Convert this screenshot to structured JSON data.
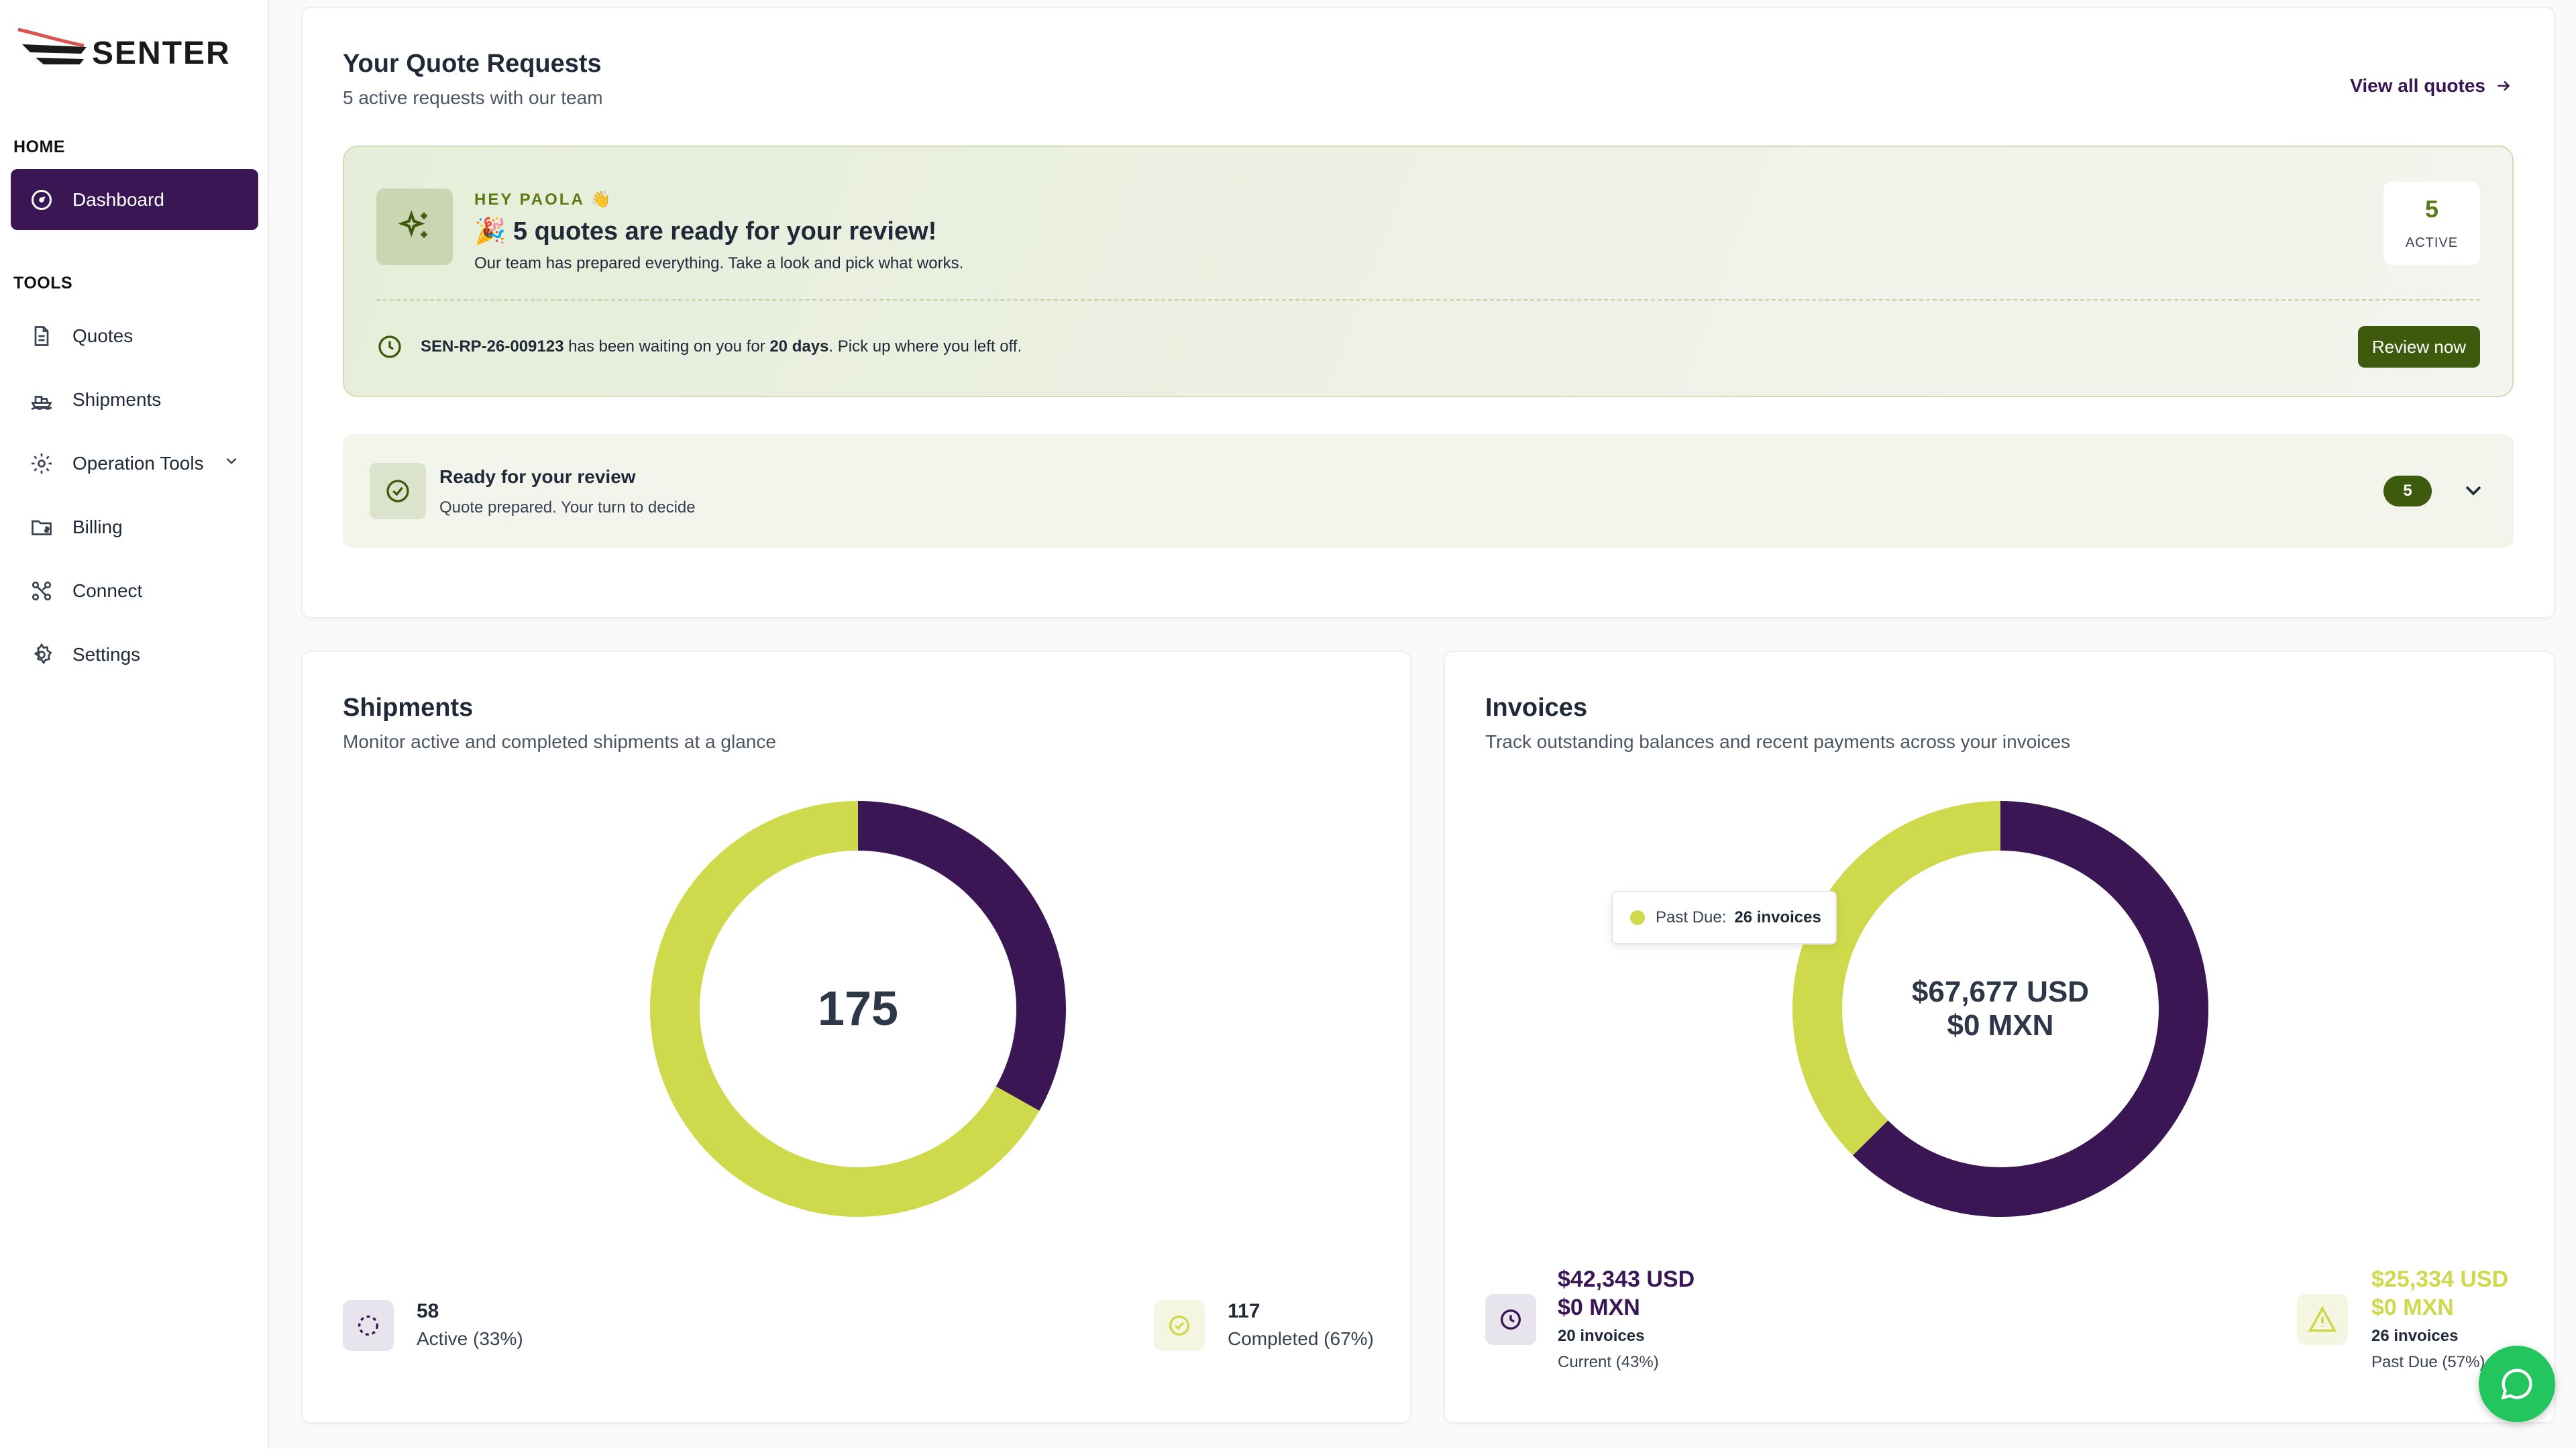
{
  "brand": {
    "name": "SENTER"
  },
  "sidebar": {
    "home_label": "HOME",
    "tools_label": "TOOLS",
    "items": [
      {
        "label": "Dashboard",
        "icon": "gauge-icon",
        "active": true
      },
      {
        "label": "Quotes",
        "icon": "document-icon"
      },
      {
        "label": "Shipments",
        "icon": "ship-icon"
      },
      {
        "label": "Operation Tools",
        "icon": "gear-cog-icon"
      },
      {
        "label": "Billing",
        "icon": "folder-dollar-icon"
      },
      {
        "label": "Connect",
        "icon": "connect-icon"
      },
      {
        "label": "Settings",
        "icon": "settings-icon"
      }
    ]
  },
  "quotes": {
    "title": "Your Quote Requests",
    "subtitle": "5 active requests with our team",
    "view_all": "View all quotes",
    "hero": {
      "greeting": "HEY PAOLA 👋",
      "title": "🎉 5 quotes are ready for your review!",
      "desc": "Our team has prepared everything. Take a look and pick what works.",
      "active_count": "5",
      "active_label": "ACTIVE",
      "waiting_ref": "SEN-RP-26-009123",
      "waiting_mid": " has been waiting on you for ",
      "waiting_days": "20 days",
      "waiting_end": ". Pick up where you left off.",
      "review_button": "Review now"
    },
    "ready": {
      "title": "Ready for your review",
      "subtitle": "Quote prepared. Your turn to decide",
      "badge": "5"
    }
  },
  "shipments": {
    "title": "Shipments",
    "subtitle": "Monitor active and completed shipments at a glance",
    "total": "175",
    "active_count": "58",
    "active_label": "Active (33%)",
    "completed_count": "117",
    "completed_label": "Completed (67%)"
  },
  "invoices": {
    "title": "Invoices",
    "subtitle": "Track outstanding balances and recent payments across your invoices",
    "center_usd": "$67,677 USD",
    "center_mxn": "$0 MXN",
    "tooltip_label": "Past Due:",
    "tooltip_value": "26 invoices",
    "current_usd": "$42,343 USD",
    "current_mxn": "$0 MXN",
    "current_count": "20 invoices",
    "current_label": "Current (43%)",
    "pastdue_usd": "$25,334 USD",
    "pastdue_mxn": "$0 MXN",
    "pastdue_count": "26 invoices",
    "pastdue_label": "Past Due (57%)"
  },
  "chart_data": [
    {
      "type": "pie",
      "title": "Shipments",
      "categories": [
        "Active",
        "Completed"
      ],
      "values": [
        58,
        117
      ],
      "colors": [
        "#3a1655",
        "#cfd94c"
      ]
    },
    {
      "type": "pie",
      "title": "Invoices",
      "categories": [
        "Current",
        "Past Due"
      ],
      "values": [
        42343,
        25334
      ],
      "colors": [
        "#3a1655",
        "#cfd94c"
      ]
    }
  ],
  "colors": {
    "purple": "#3a1655",
    "lime": "#cfd94c",
    "green": "#3d5a0d",
    "chat": "#22c55e"
  }
}
